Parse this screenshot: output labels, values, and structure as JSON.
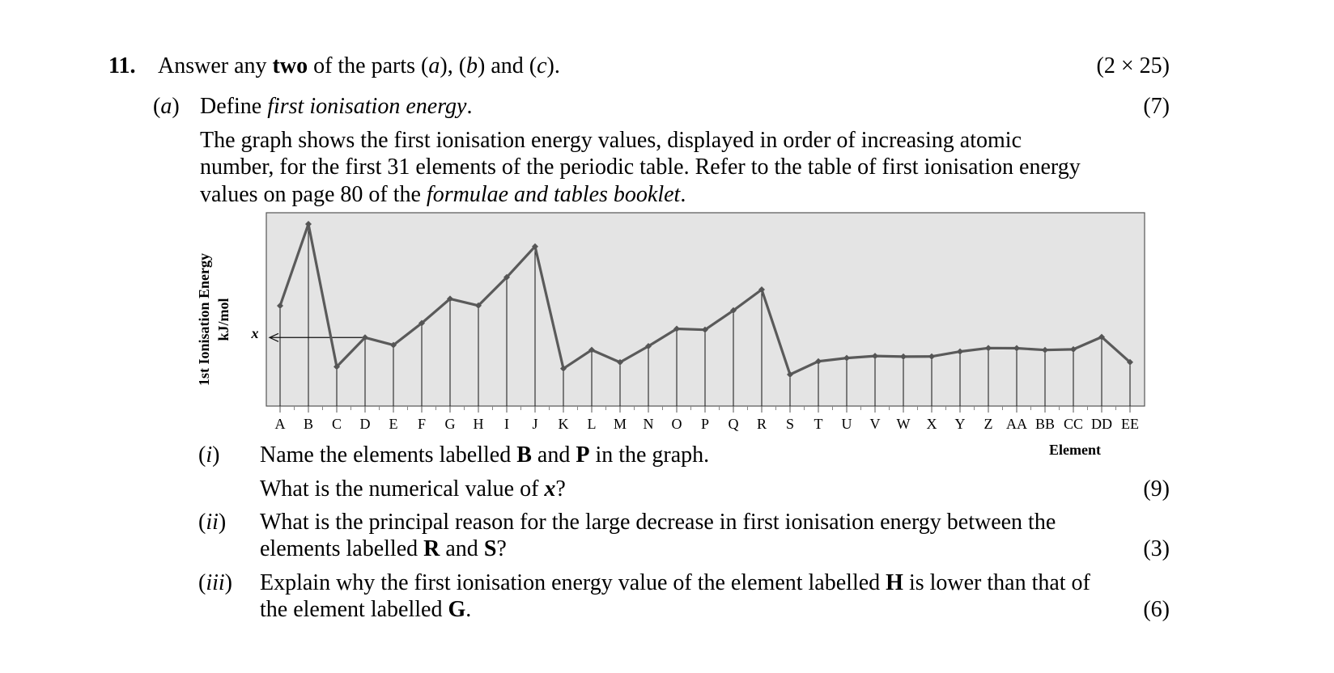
{
  "question": {
    "number": "11.",
    "intro": {
      "pre": "Answer any ",
      "bold": "two",
      "mid1": " of the parts (",
      "a": "a",
      "mid2": "), (",
      "b": "b",
      "mid3": ") and (",
      "c": "c",
      "post": ")."
    },
    "total_marks": "(2 × 25)"
  },
  "part_a": {
    "label_open": "(",
    "label": "a",
    "label_close": ")",
    "define_pre": "Define ",
    "define_term": "first ionisation energy",
    "define_post": ".",
    "marks": "(7)",
    "para_line1": "The graph shows the first ionisation energy values, displayed in order of increasing atomic",
    "para_line2": "number, for the first 31 elements of the periodic table.  Refer to the table of first ionisation energy",
    "para_line3_pre": "values on page 80 of the ",
    "para_line3_italic": "formulae and tables booklet",
    "para_line3_post": "."
  },
  "chart_data": {
    "type": "line",
    "title": "",
    "ylabel_line1": "1st Ionisation Energy",
    "ylabel_line2": "kJ/mol",
    "xlabel": "Element",
    "x_marker_label": "x",
    "x_marker_category": "D",
    "categories": [
      "A",
      "B",
      "C",
      "D",
      "E",
      "F",
      "G",
      "H",
      "I",
      "J",
      "K",
      "L",
      "M",
      "N",
      "O",
      "P",
      "Q",
      "R",
      "S",
      "T",
      "U",
      "V",
      "W",
      "X",
      "Y",
      "Z",
      "AA",
      "BB",
      "CC",
      "DD",
      "EE"
    ],
    "values": [
      1312,
      2372,
      520,
      899,
      801,
      1086,
      1402,
      1314,
      1681,
      2081,
      496,
      738,
      578,
      787,
      1012,
      1000,
      1251,
      1521,
      419,
      590,
      633,
      659,
      651,
      653,
      717,
      762,
      760,
      737,
      746,
      906,
      579
    ],
    "ylim": [
      0,
      2500
    ],
    "grid": false,
    "background": "#e4e4e4",
    "line_color": "#5a5a5a"
  },
  "sub_i": {
    "label_pre": "(",
    "label": "i",
    "label_post": ")",
    "line1_pre": "Name the elements labelled ",
    "B": "B",
    "and": " and ",
    "P": "P",
    "line1_post": " in the graph.",
    "line2_pre": "What is the numerical value of ",
    "x": "x",
    "line2_post": "?",
    "marks": "(9)"
  },
  "sub_ii": {
    "label_pre": "(",
    "label": "ii",
    "label_post": ")",
    "line1": "What is the principal reason for the large decrease in first ionisation energy between the",
    "line2_pre": "elements labelled ",
    "R": "R",
    "and": " and ",
    "S": "S",
    "line2_post": "?",
    "marks": "(3)"
  },
  "sub_iii": {
    "label_pre": "(",
    "label": "iii",
    "label_post": ")",
    "line1_pre": "Explain why the first ionisation energy value of the element labelled ",
    "H": "H",
    "line1_post": " is lower than that of",
    "line2_pre": "the element labelled ",
    "G": "G",
    "line2_post": ".",
    "marks": "(6)"
  }
}
